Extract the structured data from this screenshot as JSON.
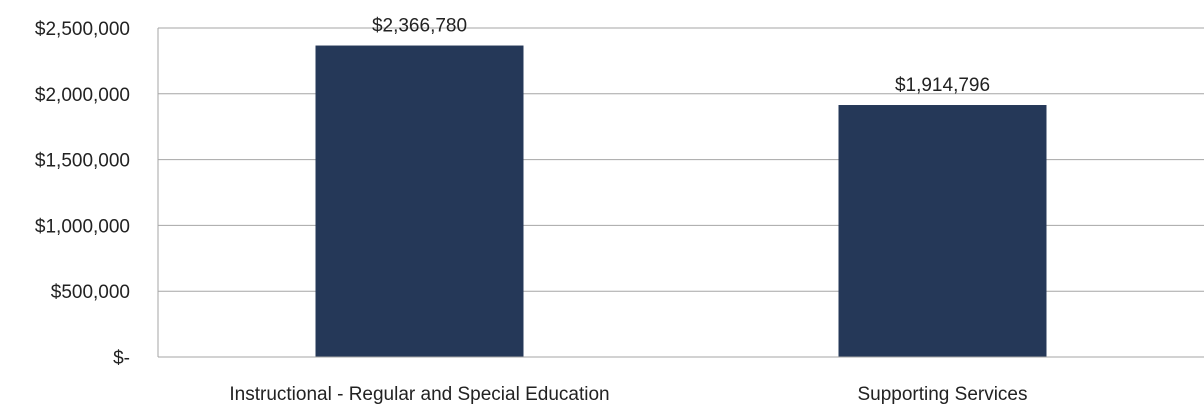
{
  "chart_data": {
    "type": "bar",
    "categories": [
      "Instructional - Regular and Special Education",
      "Supporting Services"
    ],
    "values": [
      2366780,
      1914796
    ],
    "data_labels": [
      "$2,366,780",
      "$1,914,796"
    ],
    "title": "",
    "xlabel": "",
    "ylabel": "",
    "ylim": [
      0,
      2500000
    ],
    "yticks": [
      0,
      500000,
      1000000,
      1500000,
      2000000,
      2500000
    ],
    "ytick_labels": [
      "$-",
      "$500,000",
      "$1,000,000",
      "$1,500,000",
      "$2,000,000",
      "$2,500,000"
    ],
    "grid": true,
    "legend": "none",
    "bar_color": "#253858",
    "grid_color": "#a6a6a6"
  }
}
